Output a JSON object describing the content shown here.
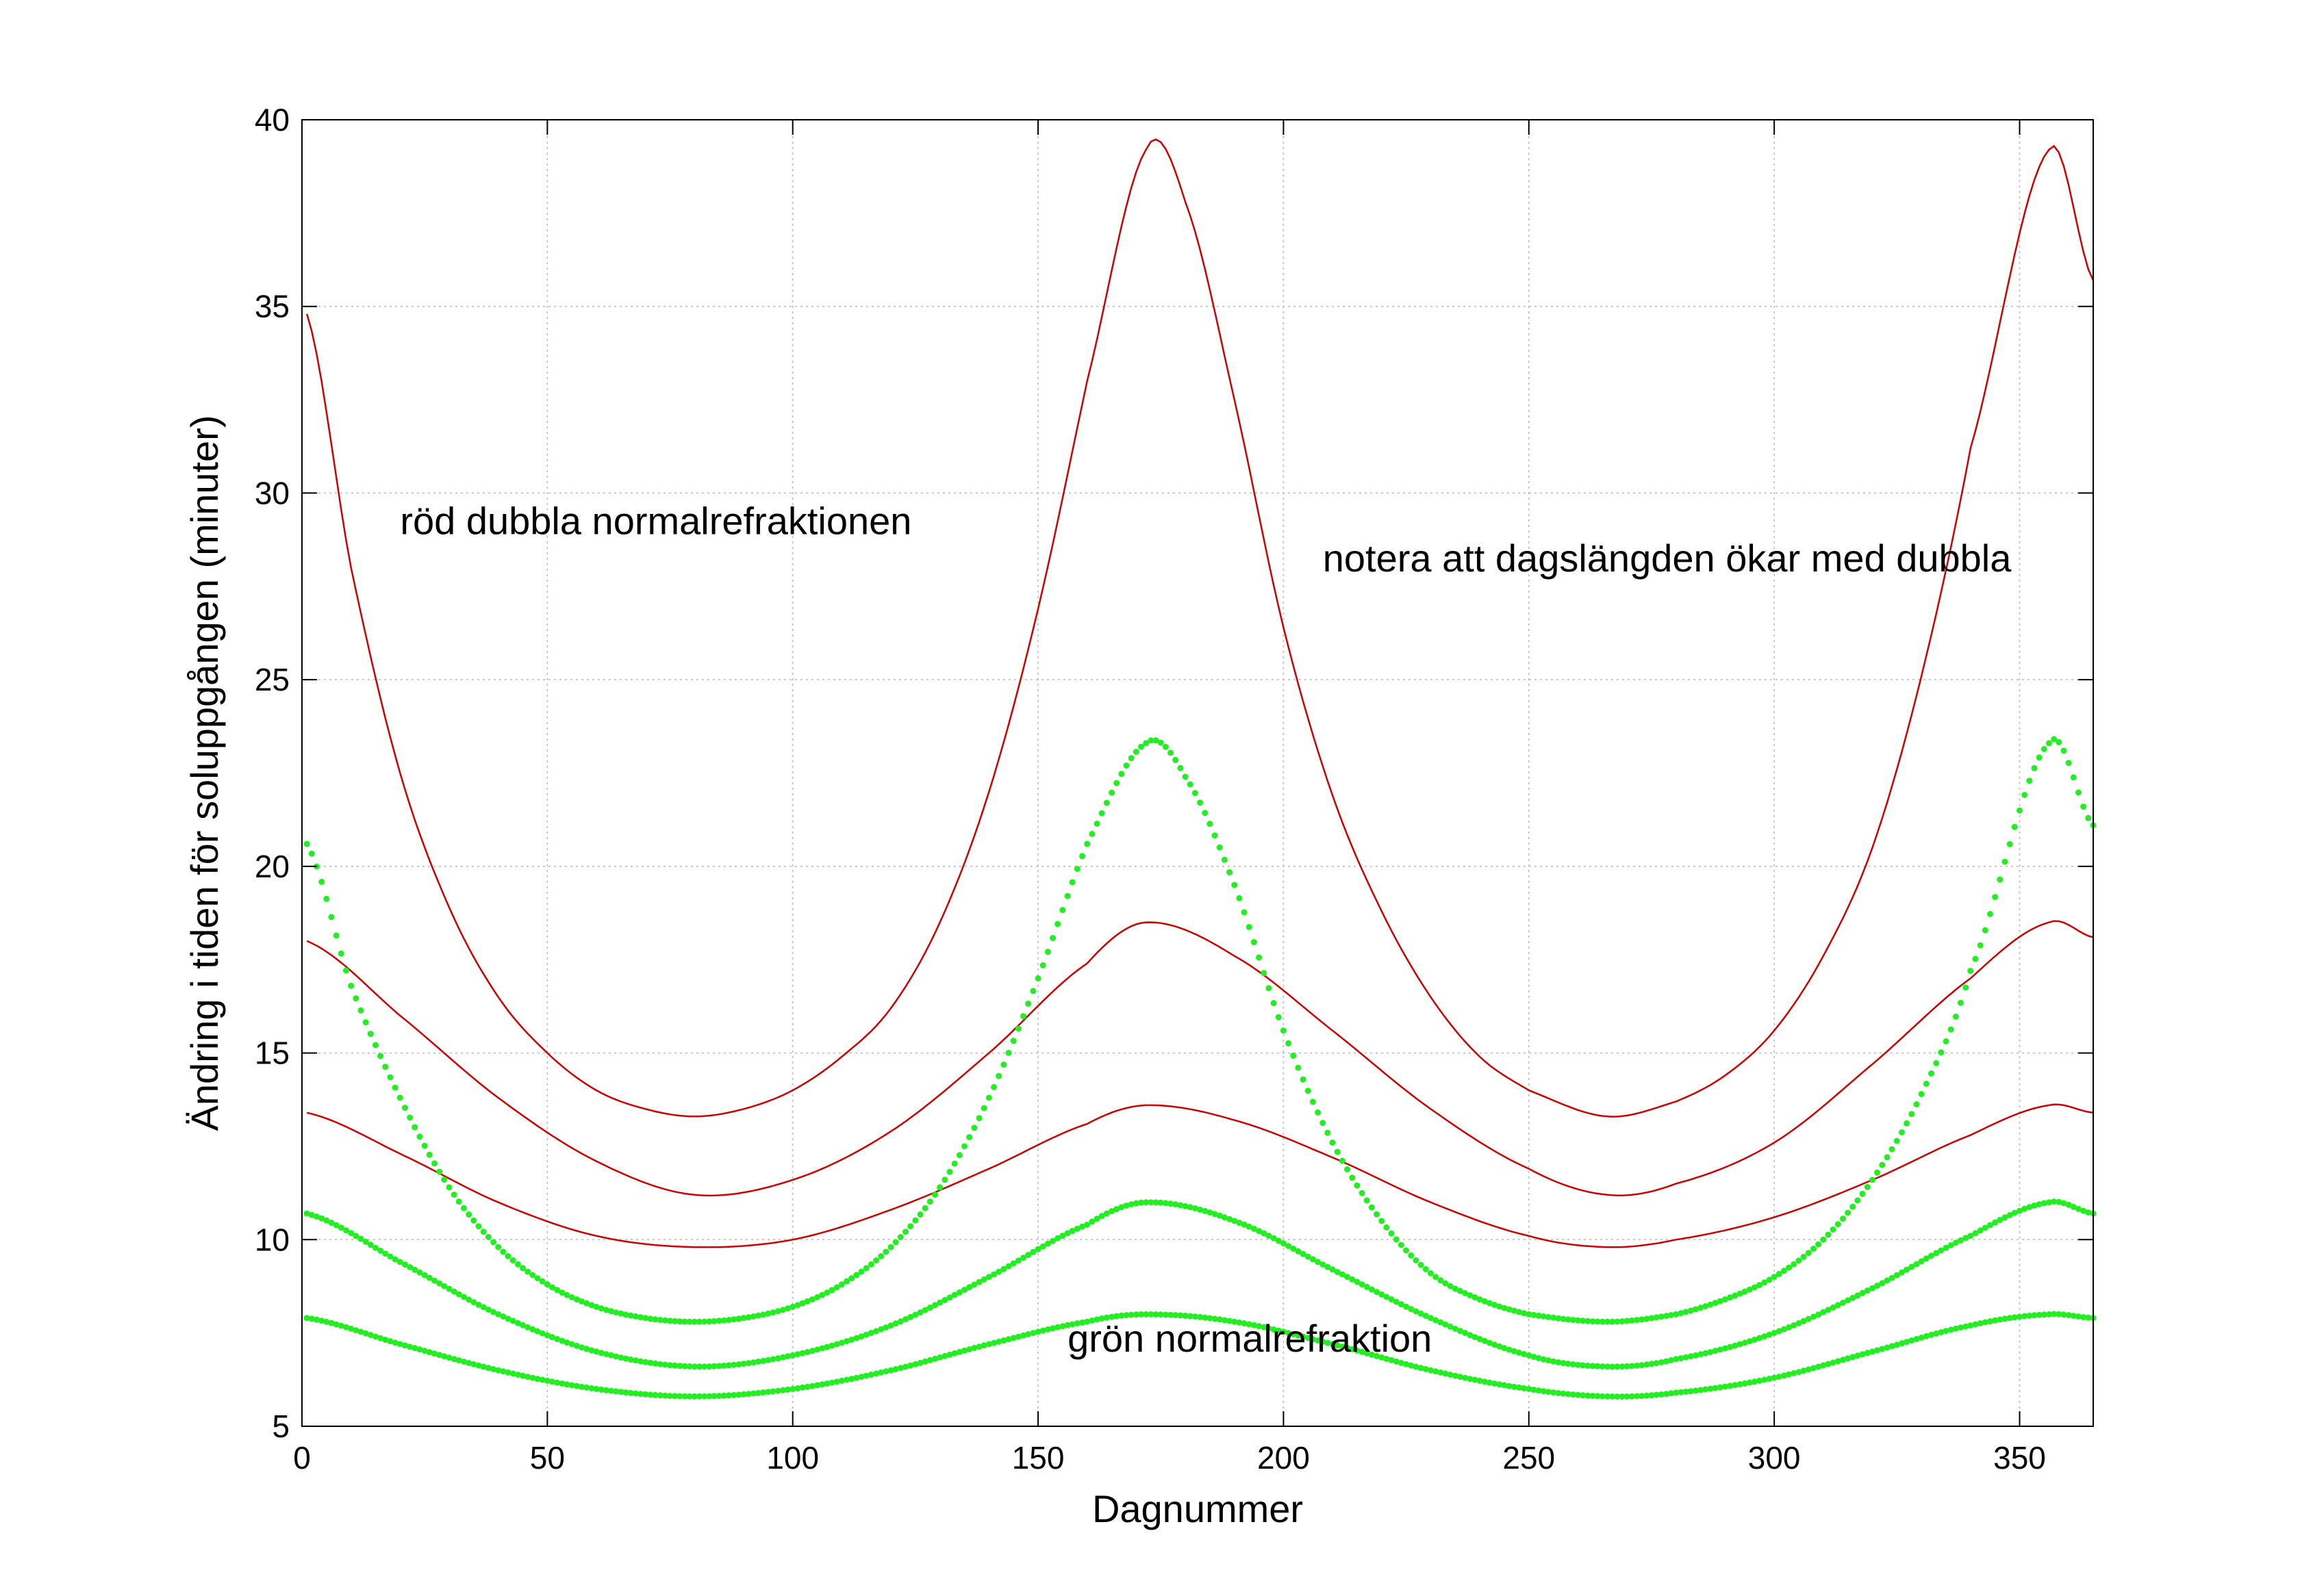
{
  "chart_data": {
    "type": "line",
    "xlabel": "Dagnummer",
    "ylabel": "Ändring i tiden för soluppgången (minuter)",
    "xlim": [
      0,
      365
    ],
    "ylim": [
      5,
      40
    ],
    "xticks": [
      "0",
      "50",
      "100",
      "150",
      "200",
      "250",
      "300",
      "350"
    ],
    "yticks": [
      "5",
      "10",
      "15",
      "20",
      "25",
      "30",
      "35",
      "40"
    ],
    "grid": true,
    "annotations": [
      {
        "text": "röd dubbla normalrefraktionen",
        "x": 20,
        "y": 28.9
      },
      {
        "text": "notera att dagslängden ökar med dubbla",
        "x": 208,
        "y": 27.9
      },
      {
        "text": "grön normalrefraktion",
        "x": 156,
        "y": 7.0
      }
    ],
    "series": [
      {
        "style": "red-line",
        "color": "#cc0000",
        "x": [
          1,
          10,
          20,
          30,
          40,
          50,
          60,
          70,
          80,
          90,
          100,
          110,
          120,
          130,
          140,
          150,
          160,
          172,
          180,
          190,
          200,
          210,
          220,
          230,
          240,
          250,
          266,
          280,
          290,
          300,
          310,
          320,
          330,
          340,
          356,
          365
        ],
        "values": [
          34.8,
          28.0,
          22.5,
          18.9,
          16.5,
          15.0,
          14.0,
          13.5,
          13.3,
          13.5,
          14.0,
          14.9,
          16.2,
          18.5,
          22.0,
          26.9,
          33.0,
          39.2,
          37.8,
          32.5,
          26.4,
          21.9,
          18.8,
          16.5,
          14.9,
          14.0,
          13.3,
          13.7,
          14.4,
          15.6,
          17.6,
          20.5,
          25.1,
          31.2,
          39.2,
          35.7
        ]
      },
      {
        "style": "red-line",
        "color": "#cc0000",
        "x": [
          1,
          20,
          40,
          60,
          80,
          100,
          120,
          140,
          160,
          172,
          190,
          210,
          230,
          250,
          266,
          280,
          300,
          320,
          340,
          356,
          365
        ],
        "values": [
          18.0,
          16.0,
          13.8,
          12.1,
          11.2,
          11.6,
          12.9,
          15.0,
          17.4,
          18.5,
          17.6,
          15.6,
          13.5,
          11.9,
          11.2,
          11.5,
          12.6,
          14.7,
          17.0,
          18.5,
          18.1
        ]
      },
      {
        "style": "red-line",
        "color": "#cc0000",
        "x": [
          1,
          20,
          40,
          60,
          80,
          100,
          120,
          140,
          160,
          172,
          190,
          210,
          230,
          250,
          266,
          280,
          300,
          320,
          340,
          356,
          365
        ],
        "values": [
          13.4,
          12.3,
          11.0,
          10.1,
          9.8,
          10.0,
          10.8,
          11.9,
          13.1,
          13.6,
          13.2,
          12.2,
          11.0,
          10.1,
          9.8,
          10.0,
          10.6,
          11.6,
          12.8,
          13.6,
          13.4
        ]
      },
      {
        "style": "green-dotted",
        "color": "#22ee22",
        "x": [
          1,
          10,
          20,
          30,
          40,
          50,
          60,
          70,
          80,
          90,
          100,
          110,
          120,
          130,
          140,
          150,
          160,
          172,
          180,
          190,
          200,
          210,
          220,
          230,
          240,
          250,
          266,
          280,
          290,
          300,
          310,
          320,
          330,
          340,
          356,
          365
        ],
        "values": [
          20.6,
          16.8,
          13.8,
          11.4,
          9.8,
          8.8,
          8.2,
          7.9,
          7.8,
          7.9,
          8.2,
          8.8,
          9.8,
          11.4,
          13.8,
          17.0,
          20.6,
          23.3,
          22.4,
          19.5,
          15.6,
          12.6,
          10.5,
          9.1,
          8.4,
          8.0,
          7.8,
          8.0,
          8.4,
          9.0,
          10.0,
          11.6,
          13.9,
          17.2,
          23.3,
          21.1
        ]
      },
      {
        "style": "green-dotted",
        "color": "#22ee22",
        "x": [
          1,
          20,
          40,
          60,
          80,
          100,
          120,
          140,
          160,
          172,
          190,
          210,
          230,
          250,
          266,
          280,
          300,
          320,
          340,
          356,
          365
        ],
        "values": [
          10.7,
          9.4,
          8.0,
          7.0,
          6.6,
          6.9,
          7.7,
          9.0,
          10.4,
          11.0,
          10.5,
          9.2,
          7.9,
          6.9,
          6.6,
          6.8,
          7.5,
          8.7,
          10.1,
          11.0,
          10.7
        ]
      },
      {
        "style": "green-dotted",
        "color": "#22ee22",
        "x": [
          1,
          20,
          40,
          60,
          80,
          100,
          120,
          140,
          160,
          172,
          190,
          210,
          230,
          250,
          266,
          280,
          300,
          320,
          340,
          356,
          365
        ],
        "values": [
          7.9,
          7.2,
          6.5,
          6.0,
          5.8,
          6.0,
          6.5,
          7.2,
          7.8,
          8.0,
          7.8,
          7.2,
          6.5,
          6.0,
          5.8,
          5.9,
          6.3,
          7.0,
          7.7,
          8.0,
          7.9
        ]
      }
    ]
  }
}
